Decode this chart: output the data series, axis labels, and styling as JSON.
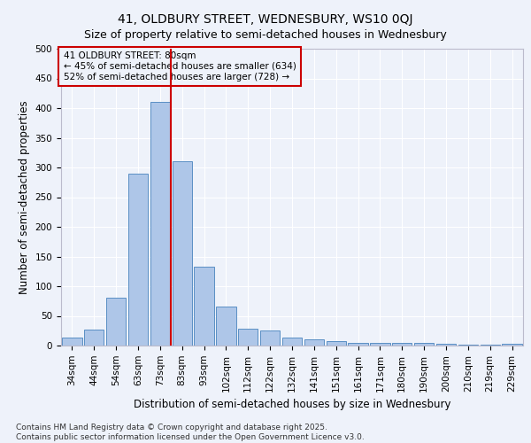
{
  "title": "41, OLDBURY STREET, WEDNESBURY, WS10 0QJ",
  "subtitle": "Size of property relative to semi-detached houses in Wednesbury",
  "xlabel": "Distribution of semi-detached houses by size in Wednesbury",
  "ylabel": "Number of semi-detached properties",
  "categories": [
    "34sqm",
    "44sqm",
    "54sqm",
    "63sqm",
    "73sqm",
    "83sqm",
    "93sqm",
    "102sqm",
    "112sqm",
    "122sqm",
    "132sqm",
    "141sqm",
    "151sqm",
    "161sqm",
    "171sqm",
    "180sqm",
    "190sqm",
    "200sqm",
    "210sqm",
    "219sqm",
    "229sqm"
  ],
  "values": [
    13,
    27,
    80,
    290,
    410,
    310,
    133,
    65,
    29,
    25,
    13,
    11,
    8,
    4,
    4,
    5,
    4,
    3,
    1,
    1,
    3
  ],
  "bar_color": "#aec6e8",
  "bar_edge_color": "#5a8fc4",
  "property_label": "41 OLDBURY STREET: 80sqm",
  "pct_smaller": 45,
  "pct_smaller_n": 634,
  "pct_larger": 52,
  "pct_larger_n": 728,
  "vline_x": 4.5,
  "vline_color": "#cc0000",
  "annotation_box_edge": "#cc0000",
  "footer": "Contains HM Land Registry data © Crown copyright and database right 2025.\nContains public sector information licensed under the Open Government Licence v3.0.",
  "ylim": [
    0,
    500
  ],
  "yticks": [
    0,
    50,
    100,
    150,
    200,
    250,
    300,
    350,
    400,
    450,
    500
  ],
  "bg_color": "#eef2fa",
  "grid_color": "#ffffff",
  "title_fontsize": 10,
  "subtitle_fontsize": 9,
  "axis_label_fontsize": 8.5,
  "tick_fontsize": 7.5,
  "annotation_fontsize": 7.5,
  "footer_fontsize": 6.5
}
